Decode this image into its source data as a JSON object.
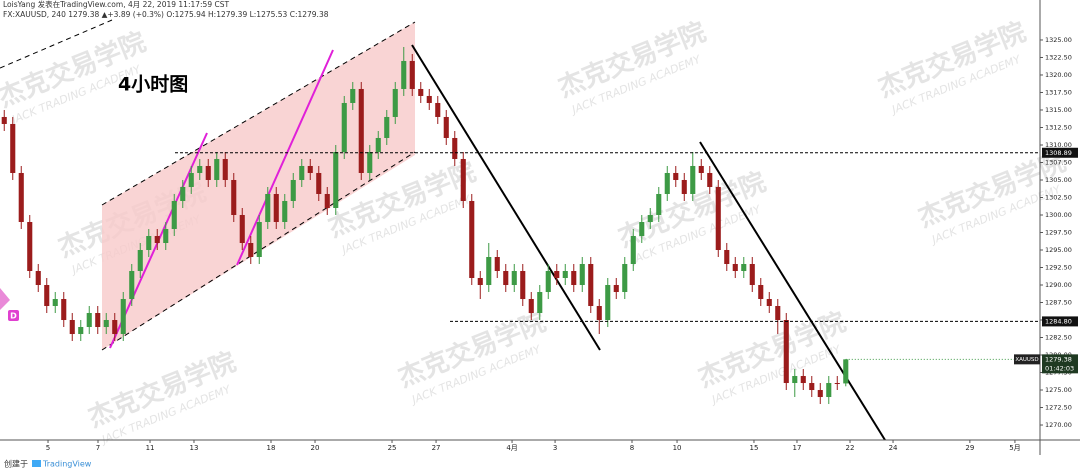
{
  "header": {
    "line1": "LoisYang 发表在TradingView.com, 4月 22, 2019 11:17:59 CST",
    "line2": "FX:XAUUSD, 240 1279.38 ▲+3.89 (+0.3%) O:1275.94 H:1279.39 L:1275.53 C:1279.38"
  },
  "annotation": "4小时图",
  "marker": "D",
  "watermark": {
    "title": "杰克交易学院",
    "subtitle": "JACK TRADING ACADEMY"
  },
  "footer": {
    "created": "创建于",
    "brand": "TradingView"
  },
  "chart_data": {
    "type": "candlestick",
    "up_color": "#3d9a45",
    "down_color": "#9b1c1c",
    "grid": false,
    "open": [
      1314,
      1313,
      1306,
      1299,
      1292,
      1290,
      1287,
      1288,
      1285,
      1283,
      1284,
      1286,
      1284,
      1285,
      1283,
      1288,
      1292,
      1295,
      1297,
      1296,
      1298,
      1302,
      1304,
      1306,
      1307,
      1305,
      1308,
      1305,
      1300,
      1296,
      1294,
      1299,
      1303,
      1299,
      1302,
      1305,
      1307,
      1306,
      1303,
      1301,
      1309,
      1316,
      1318,
      1306,
      1309,
      1311,
      1314,
      1318,
      1322,
      1318,
      1317,
      1316,
      1314,
      1311,
      1308,
      1302,
      1291,
      1290,
      1294,
      1292,
      1290,
      1292,
      1288,
      1286,
      1289,
      1292,
      1291,
      1292,
      1290,
      1293,
      1287,
      1285,
      1290,
      1289,
      1293,
      1297,
      1299,
      1300,
      1303,
      1306,
      1305,
      1303,
      1307,
      1306,
      1304,
      1295,
      1293,
      1292,
      1293,
      1290,
      1288,
      1287,
      1285,
      1276,
      1277,
      1276,
      1275,
      1274,
      1276,
      1275.94
    ],
    "high": [
      1315,
      1314,
      1307,
      1300,
      1293,
      1291,
      1289,
      1289,
      1286,
      1285,
      1287,
      1287,
      1286,
      1286,
      1289,
      1293,
      1296,
      1298,
      1298,
      1299,
      1303,
      1305,
      1307,
      1308,
      1308,
      1309,
      1309,
      1306,
      1301,
      1297,
      1300,
      1304,
      1304,
      1303,
      1306,
      1308,
      1308,
      1307,
      1304,
      1310,
      1317,
      1319,
      1319,
      1310,
      1312,
      1315,
      1319,
      1324,
      1323,
      1319,
      1318,
      1317,
      1315,
      1312,
      1309,
      1303,
      1292,
      1296,
      1295,
      1293,
      1293,
      1293,
      1289,
      1290,
      1293,
      1293,
      1293,
      1293,
      1294,
      1294,
      1288,
      1291,
      1291,
      1294,
      1298,
      1300,
      1301,
      1304,
      1307,
      1307,
      1306,
      1309,
      1308,
      1307,
      1305,
      1296,
      1294,
      1294,
      1294,
      1291,
      1289,
      1288,
      1286,
      1278,
      1278,
      1277,
      1276,
      1277,
      1277,
      1279.39
    ],
    "low": [
      1312,
      1305,
      1298,
      1291,
      1289,
      1286,
      1286,
      1284,
      1282,
      1282,
      1283,
      1283,
      1283,
      1282,
      1282,
      1287,
      1291,
      1294,
      1295,
      1295,
      1297,
      1301,
      1303,
      1305,
      1304,
      1304,
      1304,
      1299,
      1295,
      1293,
      1293,
      1298,
      1298,
      1298,
      1301,
      1304,
      1305,
      1302,
      1300,
      1300,
      1308,
      1315,
      1305,
      1305,
      1308,
      1310,
      1313,
      1317,
      1317,
      1316,
      1315,
      1313,
      1310,
      1307,
      1301,
      1290,
      1288,
      1289,
      1291,
      1289,
      1289,
      1287,
      1285,
      1285,
      1288,
      1290,
      1290,
      1289,
      1289,
      1286,
      1283,
      1284,
      1288,
      1288,
      1292,
      1296,
      1298,
      1299,
      1302,
      1304,
      1302,
      1302,
      1305,
      1303,
      1294,
      1292,
      1291,
      1291,
      1289,
      1287,
      1286,
      1283,
      1275,
      1274,
      1275,
      1274,
      1273,
      1273,
      1275,
      1275.53
    ],
    "close": [
      1313,
      1306,
      1299,
      1292,
      1290,
      1287,
      1288,
      1285,
      1283,
      1284,
      1286,
      1284,
      1285,
      1283,
      1288,
      1292,
      1295,
      1297,
      1296,
      1298,
      1302,
      1304,
      1306,
      1307,
      1305,
      1308,
      1305,
      1300,
      1296,
      1294,
      1299,
      1303,
      1299,
      1302,
      1305,
      1307,
      1306,
      1303,
      1301,
      1309,
      1316,
      1318,
      1306,
      1309,
      1311,
      1314,
      1318,
      1322,
      1318,
      1317,
      1316,
      1314,
      1311,
      1308,
      1302,
      1291,
      1290,
      1294,
      1292,
      1290,
      1292,
      1288,
      1286,
      1289,
      1292,
      1291,
      1292,
      1290,
      1293,
      1287,
      1285,
      1290,
      1289,
      1293,
      1297,
      1299,
      1300,
      1303,
      1306,
      1305,
      1303,
      1307,
      1306,
      1304,
      1295,
      1293,
      1292,
      1293,
      1290,
      1288,
      1287,
      1285,
      1276,
      1277,
      1276,
      1275,
      1274,
      1276,
      1275.94,
      1279.38
    ],
    "xlim": [
      -0.5,
      121.85
    ],
    "xticks": [
      {
        "value": 5.15,
        "label": "5"
      },
      {
        "value": 11.03,
        "label": "7"
      },
      {
        "value": 17.15,
        "label": "11"
      },
      {
        "value": 22.32,
        "label": "13"
      },
      {
        "value": 31.38,
        "label": "18"
      },
      {
        "value": 36.56,
        "label": "20"
      },
      {
        "value": 45.62,
        "label": "25"
      },
      {
        "value": 50.8,
        "label": "27"
      },
      {
        "value": 59.74,
        "label": "4月"
      },
      {
        "value": 64.8,
        "label": "3"
      },
      {
        "value": 73.85,
        "label": "8"
      },
      {
        "value": 79.15,
        "label": "10"
      },
      {
        "value": 88.2,
        "label": "15"
      },
      {
        "value": 93.26,
        "label": "17"
      },
      {
        "value": 99.5,
        "label": "22"
      },
      {
        "value": 104.56,
        "label": "24"
      },
      {
        "value": 113.6,
        "label": "29"
      },
      {
        "value": 118.9,
        "label": "5月"
      }
    ],
    "ylim": [
      1267.86,
      1330.71
    ],
    "yticks": [
      {
        "value": 1270,
        "label": "1270.00"
      },
      {
        "value": 1272.5,
        "label": "1272.50"
      },
      {
        "value": 1275,
        "label": "1275.00"
      },
      {
        "value": 1277.5,
        "label": "1277.50"
      },
      {
        "value": 1280,
        "label": "1280.00"
      },
      {
        "value": 1282.5,
        "label": "1282.50"
      },
      {
        "value": 1285,
        "label": "1285.00"
      },
      {
        "value": 1287.5,
        "label": "1287.50"
      },
      {
        "value": 1290,
        "label": "1290.00"
      },
      {
        "value": 1292.5,
        "label": "1292.50"
      },
      {
        "value": 1295,
        "label": "1295.00"
      },
      {
        "value": 1297.5,
        "label": "1297.50"
      },
      {
        "value": 1300,
        "label": "1300.00"
      },
      {
        "value": 1302.5,
        "label": "1302.50"
      },
      {
        "value": 1305,
        "label": "1305.00"
      },
      {
        "value": 1307.5,
        "label": "1307.50"
      },
      {
        "value": 1310,
        "label": "1310.00"
      },
      {
        "value": 1312.5,
        "label": "1312.50"
      },
      {
        "value": 1315,
        "label": "1315.00"
      },
      {
        "value": 1317.5,
        "label": "1317.50"
      },
      {
        "value": 1320,
        "label": "1320.00"
      },
      {
        "value": 1322.5,
        "label": "1322.50"
      },
      {
        "value": 1325,
        "label": "1325.00"
      }
    ],
    "levels": [
      1308.89,
      {
        "value": 1284.8,
        "label": "1284.80"
      }
    ],
    "last_price": {
      "symbol": "XAUUSD",
      "value": 1279.38,
      "countdown": "01:42:03"
    }
  }
}
